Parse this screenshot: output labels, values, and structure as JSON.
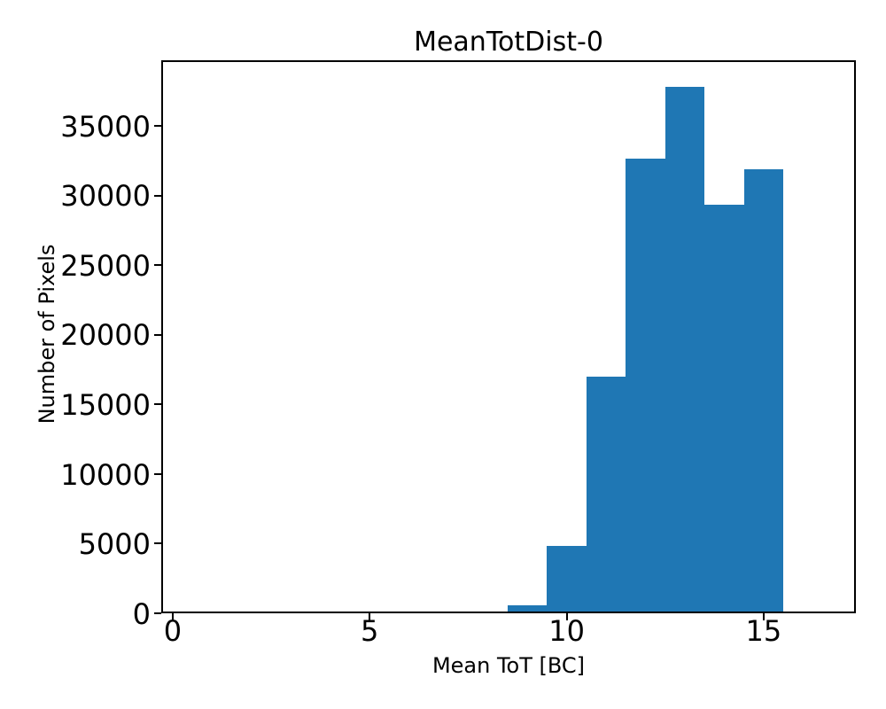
{
  "chart_data": {
    "type": "bar",
    "subtype": "histogram",
    "title": "MeanTotDist-0",
    "xlabel": "Mean ToT [BC]",
    "ylabel": "Number of Pixels",
    "bin_edges": [
      7.5,
      8.5,
      9.5,
      10.5,
      11.5,
      12.5,
      13.5,
      14.5,
      15.5
    ],
    "values": [
      160,
      550,
      4870,
      16970,
      32640,
      37800,
      29350,
      31880
    ],
    "xticks": [
      0,
      5,
      10,
      15
    ],
    "yticks": [
      0,
      5000,
      10000,
      15000,
      20000,
      25000,
      30000,
      35000
    ],
    "xlim": [
      -0.29,
      17.34
    ],
    "ylim": [
      0,
      39710
    ],
    "grid": false,
    "legend": null,
    "bar_color": "#1f77b4",
    "axis_color": "#000000",
    "background_color": "#ffffff"
  }
}
